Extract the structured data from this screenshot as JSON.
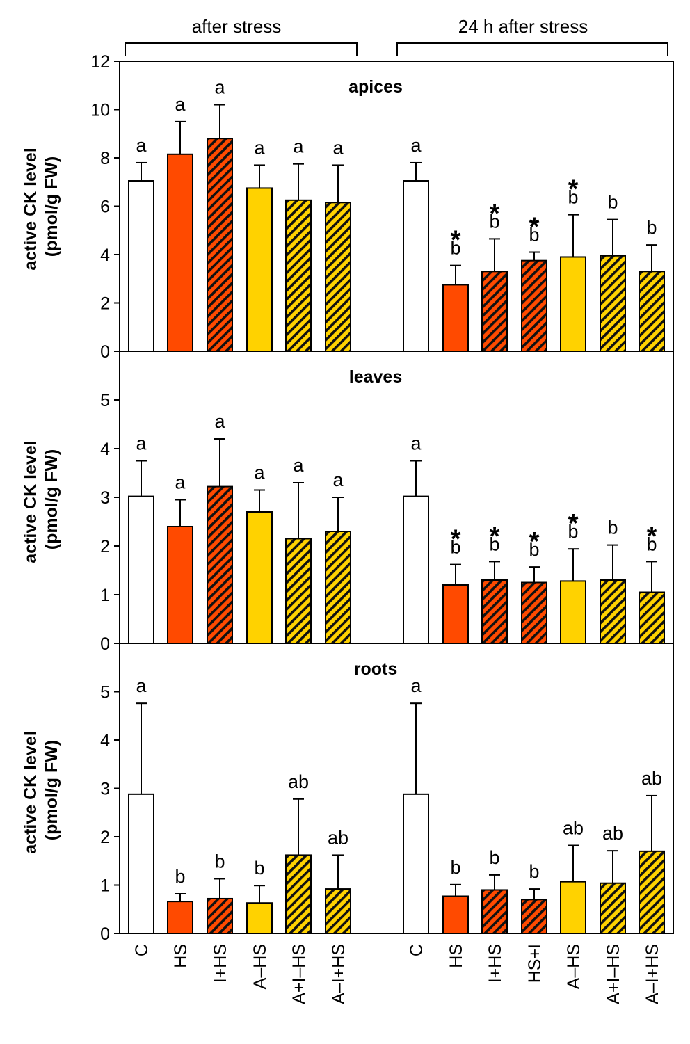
{
  "figure": {
    "group_titles": [
      "after stress",
      "24 h after stress"
    ],
    "ylabel_line1": "active CK level",
    "ylabel_line2": "(pmol/g FW)"
  },
  "categories_group1": [
    "C",
    "HS",
    "I+HS",
    "A–HS",
    "A+I–HS",
    "A–I+HS"
  ],
  "categories_group2": [
    "C",
    "HS",
    "I+HS",
    "HS+I",
    "A–HS",
    "A+I–HS",
    "A–I+HS"
  ],
  "styles": {
    "C": {
      "fill": "#ffffff",
      "hatch": false
    },
    "HS": {
      "fill": "#ff4a00",
      "hatch": false
    },
    "I+HS": {
      "fill": "#ff4a00",
      "hatch": true
    },
    "HS+I": {
      "fill": "#ff4a00",
      "hatch": true
    },
    "A–HS": {
      "fill": "#ffd200",
      "hatch": false
    },
    "A+I–HS": {
      "fill": "#ffd200",
      "hatch": true
    },
    "A–I+HS": {
      "fill": "#ffd200",
      "hatch": true
    }
  },
  "colors": {
    "red": "#ff4a00",
    "yellow": "#ffd200",
    "white": "#ffffff",
    "hatch": "#000000"
  },
  "chart_data": [
    {
      "type": "bar",
      "title": "apices",
      "ylabel": "active CK level (pmol/g FW)",
      "ylim": [
        0,
        12
      ],
      "yticks": [
        "0",
        "2",
        "4",
        "6",
        "8",
        "10",
        "12"
      ],
      "series": [
        {
          "name": "after stress",
          "categories": [
            "C",
            "HS",
            "I+HS",
            "A–HS",
            "A+I–HS",
            "A–I+HS"
          ],
          "values": [
            7.05,
            8.15,
            8.8,
            6.75,
            6.25,
            6.15
          ],
          "errors": [
            0.75,
            1.35,
            1.4,
            0.95,
            1.5,
            1.55
          ],
          "letters": [
            "a",
            "a",
            "a",
            "a",
            "a",
            "a"
          ],
          "stars": [
            false,
            false,
            false,
            false,
            false,
            false
          ]
        },
        {
          "name": "24 h after stress",
          "categories": [
            "C",
            "HS",
            "I+HS",
            "HS+I",
            "A–HS",
            "A+I–HS",
            "A–I+HS"
          ],
          "values": [
            7.05,
            2.75,
            3.3,
            3.75,
            3.9,
            3.95,
            3.3
          ],
          "errors": [
            0.75,
            0.8,
            1.35,
            0.35,
            1.75,
            1.5,
            1.1
          ],
          "letters": [
            "a",
            "b",
            "b",
            "b",
            "b",
            "b",
            "b"
          ],
          "stars": [
            false,
            true,
            true,
            true,
            true,
            false,
            false
          ]
        }
      ]
    },
    {
      "type": "bar",
      "title": "leaves",
      "ylabel": "active CK level (pmol/g FW)",
      "ylim": [
        0,
        6
      ],
      "yticks": [
        "0",
        "1",
        "2",
        "3",
        "4",
        "5"
      ],
      "series": [
        {
          "name": "after stress",
          "categories": [
            "C",
            "HS",
            "I+HS",
            "A–HS",
            "A+I–HS",
            "A–I+HS"
          ],
          "values": [
            3.02,
            2.4,
            3.22,
            2.7,
            2.15,
            2.3
          ],
          "errors": [
            0.73,
            0.55,
            0.98,
            0.45,
            1.15,
            0.7
          ],
          "letters": [
            "a",
            "a",
            "a",
            "a",
            "a",
            "a"
          ],
          "stars": [
            false,
            false,
            false,
            false,
            false,
            false
          ]
        },
        {
          "name": "24 h after stress",
          "categories": [
            "C",
            "HS",
            "I+HS",
            "HS+I",
            "A–HS",
            "A+I–HS",
            "A–I+HS"
          ],
          "values": [
            3.02,
            1.2,
            1.3,
            1.25,
            1.28,
            1.3,
            1.05
          ],
          "errors": [
            0.73,
            0.42,
            0.38,
            0.32,
            0.66,
            0.72,
            0.63
          ],
          "letters": [
            "a",
            "b",
            "b",
            "b",
            "b",
            "b",
            "b"
          ],
          "stars": [
            false,
            true,
            true,
            true,
            true,
            false,
            true
          ]
        }
      ]
    },
    {
      "type": "bar",
      "title": "roots",
      "ylabel": "active CK level (pmol/g FW)",
      "ylim": [
        0,
        6
      ],
      "yticks": [
        "0",
        "1",
        "2",
        "3",
        "4",
        "5"
      ],
      "series": [
        {
          "name": "after stress",
          "categories": [
            "C",
            "HS",
            "I+HS",
            "A–HS",
            "A+I–HS",
            "A–I+HS"
          ],
          "values": [
            2.88,
            0.66,
            0.72,
            0.63,
            1.62,
            0.92
          ],
          "errors": [
            1.88,
            0.16,
            0.41,
            0.36,
            1.16,
            0.7
          ],
          "letters": [
            "a",
            "b",
            "b",
            "b",
            "ab",
            "ab"
          ],
          "stars": [
            false,
            false,
            false,
            false,
            false,
            false
          ]
        },
        {
          "name": "24 h after stress",
          "categories": [
            "C",
            "HS",
            "I+HS",
            "HS+I",
            "A–HS",
            "A+I–HS",
            "A–I+HS"
          ],
          "values": [
            2.88,
            0.77,
            0.9,
            0.7,
            1.07,
            1.04,
            1.7
          ],
          "errors": [
            1.88,
            0.24,
            0.31,
            0.22,
            0.75,
            0.67,
            1.15
          ],
          "letters": [
            "a",
            "b",
            "b",
            "b",
            "ab",
            "ab",
            "ab"
          ],
          "stars": [
            false,
            false,
            false,
            false,
            false,
            false,
            false
          ]
        }
      ]
    }
  ]
}
